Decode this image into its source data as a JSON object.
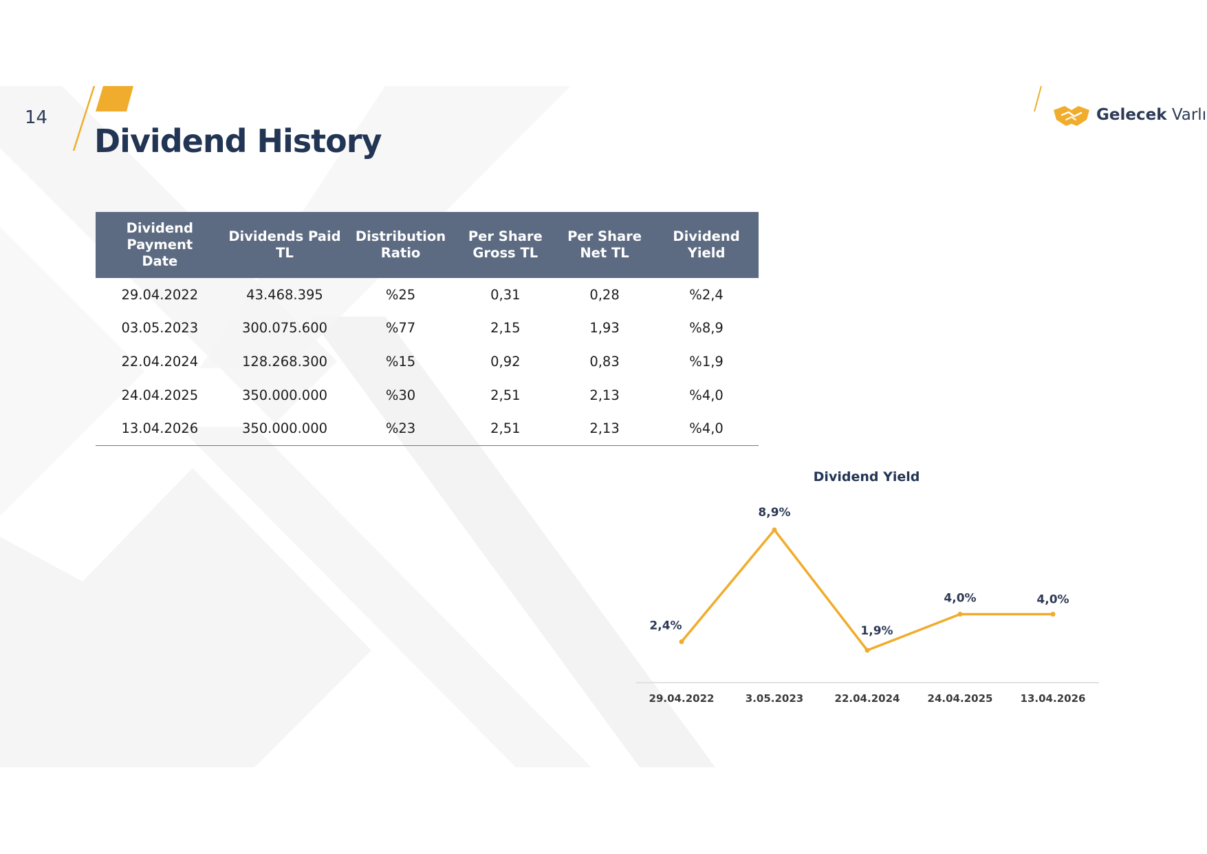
{
  "page": {
    "number": "14",
    "title": "Dividend History"
  },
  "logo": {
    "name_bold": "Gelecek",
    "name_regular": "Varlık"
  },
  "colors": {
    "accent": "#F0AC2C",
    "navy": "#233554",
    "table_header": "#5D6B82"
  },
  "table": {
    "headers": [
      [
        "Dividend Payment",
        "Date"
      ],
      [
        "Dividends Paid",
        "TL"
      ],
      [
        "Distribution",
        "Ratio"
      ],
      [
        "Per Share",
        "Gross TL"
      ],
      [
        "Per Share",
        "Net TL"
      ],
      [
        "Dividend",
        "Yield"
      ]
    ],
    "rows": [
      [
        "29.04.2022",
        "43.468.395",
        "%25",
        "0,31",
        "0,28",
        "%2,4"
      ],
      [
        "03.05.2023",
        "300.075.600",
        "%77",
        "2,15",
        "1,93",
        "%8,9"
      ],
      [
        "22.04.2024",
        "128.268.300",
        "%15",
        "0,92",
        "0,83",
        "%1,9"
      ],
      [
        "24.04.2025",
        "350.000.000",
        "%30",
        "2,51",
        "2,13",
        "%4,0"
      ],
      [
        "13.04.2026",
        "350.000.000",
        "%23",
        "2,51",
        "2,13",
        "%4,0"
      ]
    ]
  },
  "chart_data": {
    "type": "line",
    "title": "Dividend Yield",
    "categories": [
      "29.04.2022",
      "3.05.2023",
      "22.04.2024",
      "24.04.2025",
      "13.04.2026"
    ],
    "series": [
      {
        "values": [
          2.4,
          8.9,
          1.9,
          4.0,
          4.0
        ],
        "labels": [
          "2,4%",
          "8,9%",
          "1,9%",
          "4,0%",
          "4,0%"
        ],
        "color": "#F0AC2C"
      }
    ],
    "xlabel": "",
    "ylabel": "",
    "grid": false,
    "legend": "none"
  }
}
